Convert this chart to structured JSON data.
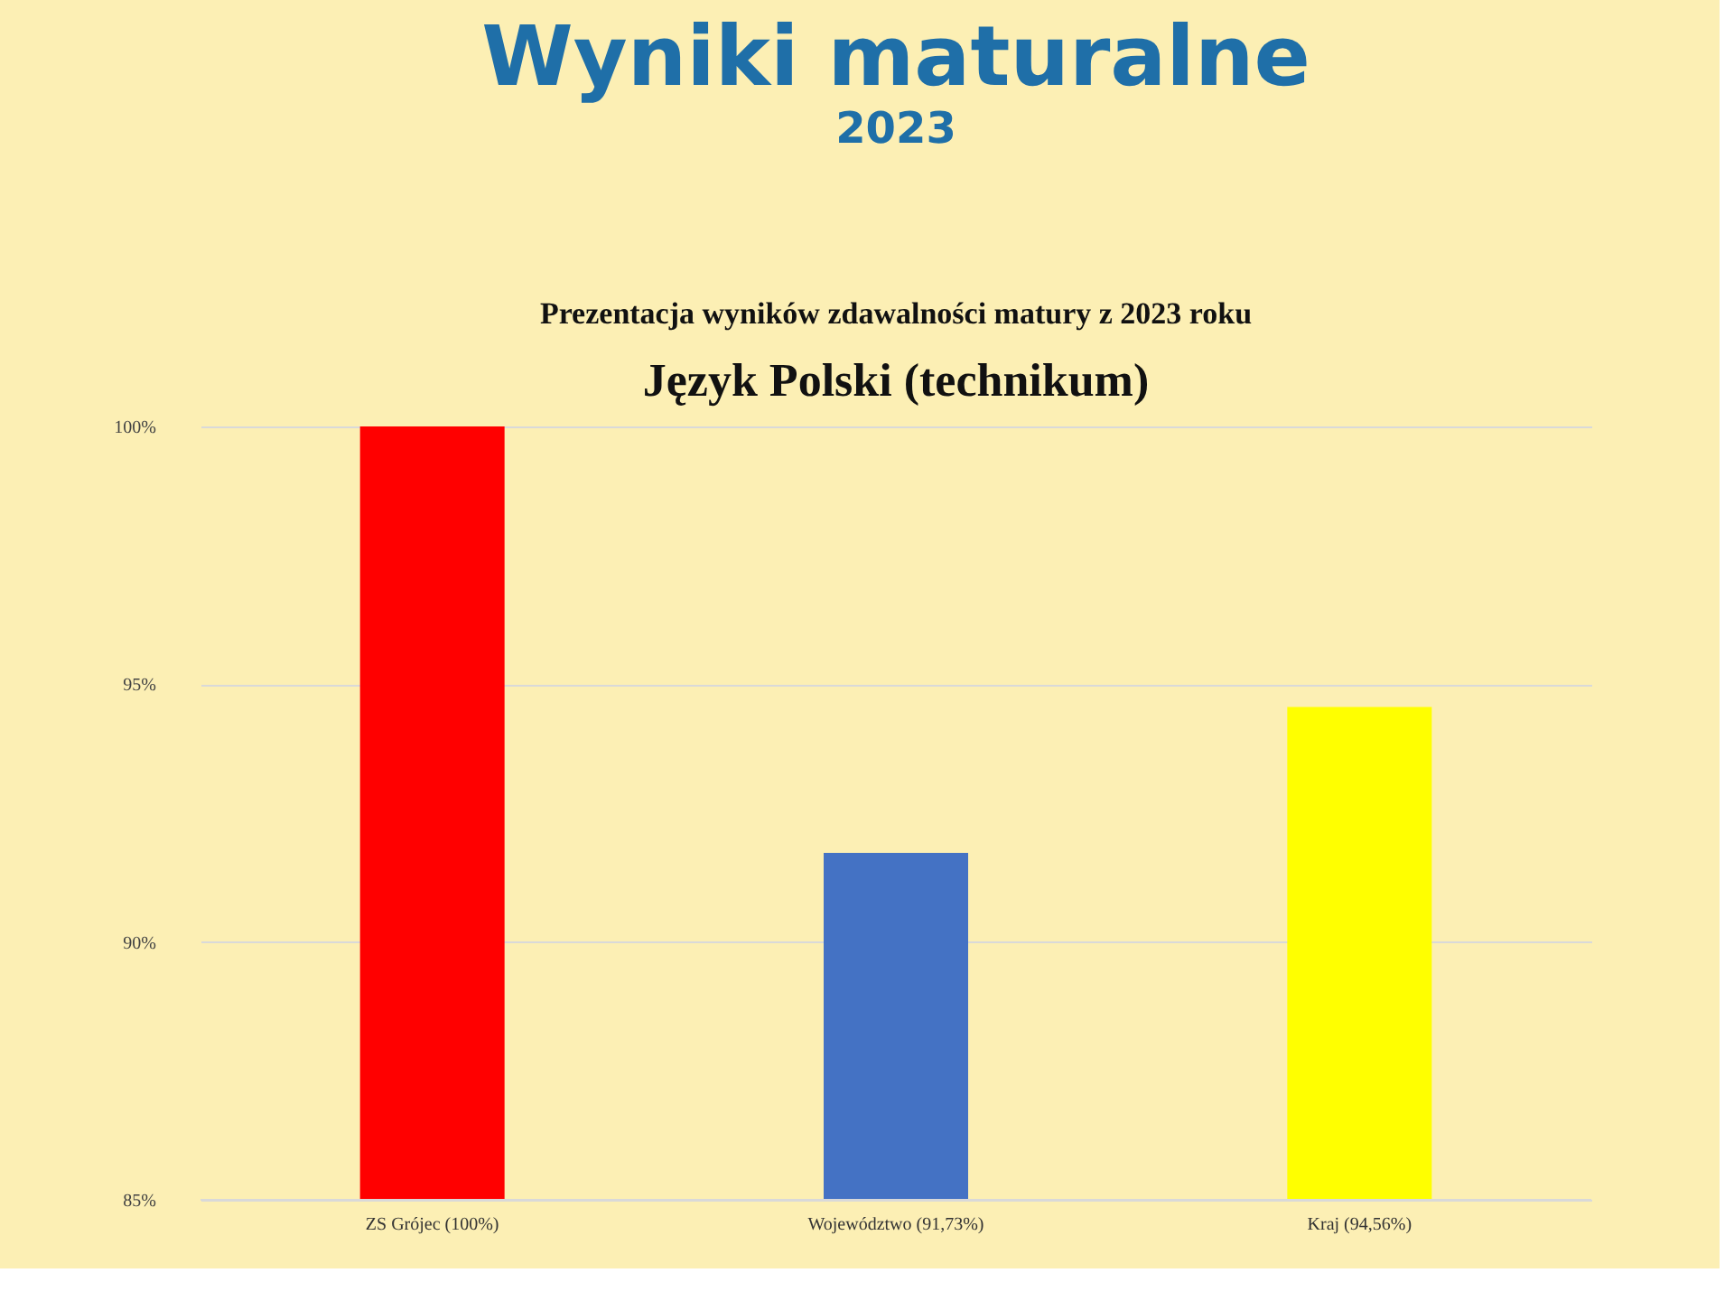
{
  "chart_data": {
    "type": "bar",
    "title": "Wyniki maturalne",
    "subtitle": "2023",
    "annotations": [
      "Prezentacja wyników zdawalności matury z 2023 roku",
      "Język Polski (technikum)"
    ],
    "categories": [
      "ZS Grójec (100%)",
      "Województwo (91,73%)",
      "Kraj (94,56%)"
    ],
    "values": [
      100,
      91.73,
      94.56
    ],
    "colors": [
      "#ff0000",
      "#4472c4",
      "#ffff00"
    ],
    "ylim": [
      85,
      100
    ],
    "yticks": [
      {
        "value": 85,
        "label": "85%"
      },
      {
        "value": 90,
        "label": "90%"
      },
      {
        "value": 95,
        "label": "95%"
      },
      {
        "value": 100,
        "label": "100%"
      }
    ],
    "grid": "y"
  }
}
